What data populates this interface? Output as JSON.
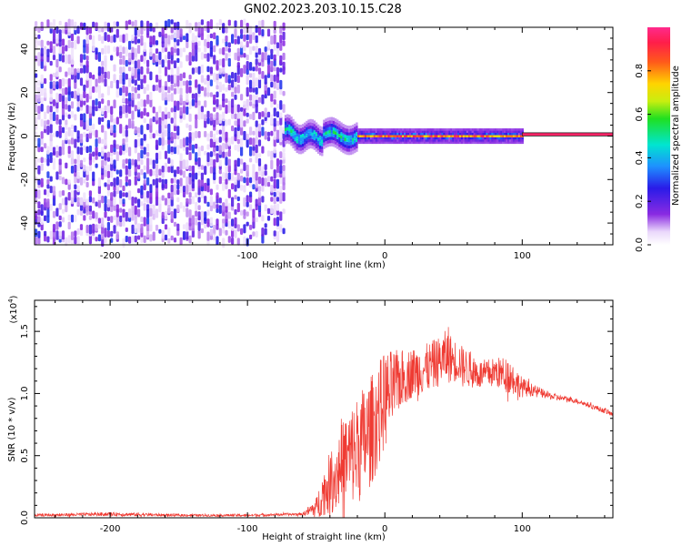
{
  "title": "GN02.2023.203.10.15.C28",
  "chart_data": [
    {
      "type": "heatmap",
      "xlabel": "Height of straight line (km)",
      "ylabel": "Frequency (Hz)",
      "xlim": [
        -255,
        166
      ],
      "ylim": [
        -50,
        50
      ],
      "xticks": [
        -200,
        -100,
        0,
        100
      ],
      "yticks": [
        -40,
        -20,
        0,
        20,
        40
      ],
      "colorbar": {
        "label": "Normalized spectral amplitude",
        "range": [
          0,
          1
        ],
        "ticks": [
          "0.0",
          "0.2",
          "0.4",
          "0.6",
          "0.8"
        ]
      },
      "regions": [
        {
          "description": "broadband noise",
          "x_range": [
            -255,
            -73
          ],
          "freq_range": [
            -50,
            50
          ],
          "amplitude_range": [
            0.0,
            0.3
          ]
        },
        {
          "description": "transition / oscillating carrier",
          "x_range": [
            -73,
            -20
          ],
          "freq_center": [
            2,
            0
          ],
          "freq_halfwidth": 6,
          "amplitude_range": [
            0.2,
            0.55
          ]
        },
        {
          "description": "stable carrier line",
          "x_range": [
            -20,
            100
          ],
          "freq_center": 0,
          "freq_halfwidth": 3,
          "amplitude_range": [
            0.2,
            0.95
          ]
        },
        {
          "description": "clean carrier line",
          "x_range": [
            100,
            166
          ],
          "freq_center": 0,
          "freq_halfwidth": 1.5,
          "amplitude_range": [
            0.9,
            1.0
          ]
        }
      ]
    },
    {
      "type": "line",
      "xlabel": "Height of straight line (km)",
      "ylabel": "SNR (10 * v/v)",
      "ymultiplier_label": "(x10",
      "ymultiplier_exp": "4",
      "ymultiplier_close": ")",
      "xlim": [
        -255,
        166
      ],
      "ylim": [
        0,
        1.75
      ],
      "xticks": [
        -200,
        -100,
        0,
        100
      ],
      "yticks": [
        "0.0",
        "0.5",
        "1.0",
        "1.5"
      ],
      "series": [
        {
          "color": "#ef3b33",
          "x": [
            -255,
            -200,
            -150,
            -100,
            -60,
            -50,
            -45,
            -40,
            -35,
            -30,
            -20,
            -10,
            0,
            10,
            20,
            30,
            40,
            45,
            50,
            55,
            60,
            70,
            80,
            90,
            95,
            100,
            110,
            120,
            130,
            140,
            150,
            160,
            166
          ],
          "y": [
            0.02,
            0.03,
            0.02,
            0.02,
            0.03,
            0.08,
            0.2,
            0.28,
            0.35,
            0.45,
            0.55,
            0.7,
            0.95,
            1.1,
            1.17,
            1.2,
            1.26,
            1.3,
            1.27,
            1.25,
            1.2,
            1.15,
            1.17,
            1.15,
            1.1,
            1.05,
            1.02,
            0.98,
            0.96,
            0.94,
            0.9,
            0.86,
            0.83
          ],
          "noise_amplitude": [
            0.01,
            0.015,
            0.01,
            0.01,
            0.01,
            0.08,
            0.18,
            0.25,
            0.3,
            0.35,
            0.45,
            0.45,
            0.4,
            0.25,
            0.2,
            0.2,
            0.2,
            0.22,
            0.18,
            0.15,
            0.15,
            0.12,
            0.12,
            0.15,
            0.12,
            0.08,
            0.04,
            0.03,
            0.02,
            0.02,
            0.02,
            0.02,
            0.02
          ]
        }
      ]
    }
  ]
}
